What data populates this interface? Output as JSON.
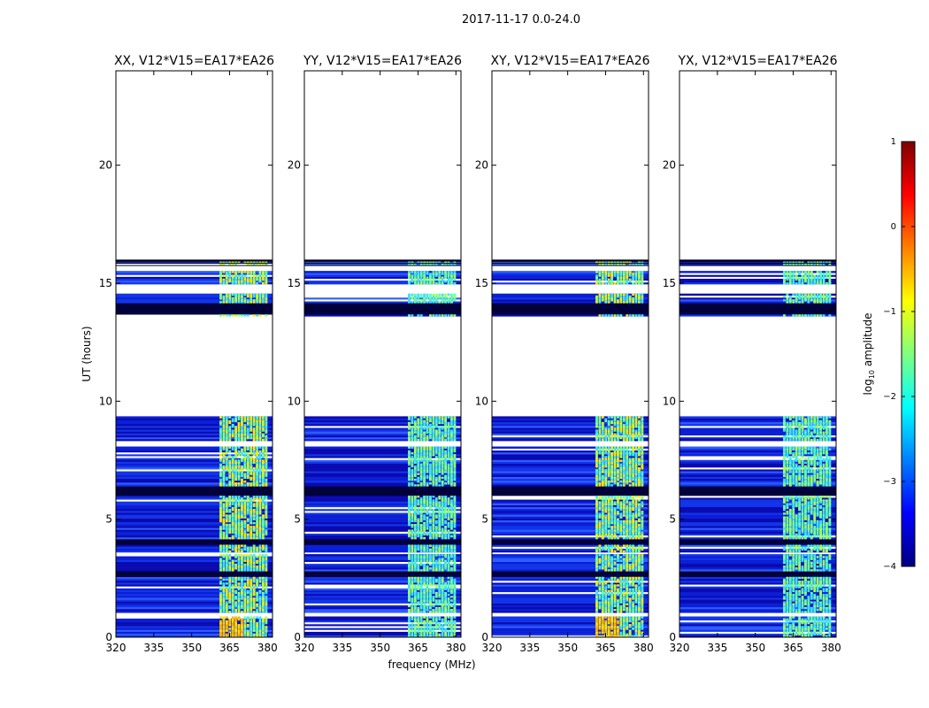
{
  "chart_data": {
    "type": "heatmap",
    "suptitle": "2017-11-17 0.0-24.0",
    "xlabel": "frequency (MHz)",
    "ylabel": "UT (hours)",
    "xlim": [
      320,
      382
    ],
    "ylim": [
      0,
      24
    ],
    "x_ticks": [
      320,
      335,
      350,
      365,
      380
    ],
    "y_ticks": [
      0,
      5,
      10,
      15,
      20
    ],
    "panels": [
      {
        "title": "XX, V12*V15=EA17*EA26",
        "show_ylabel": true,
        "show_xlabel": false
      },
      {
        "title": "YY, V12*V15=EA17*EA26",
        "show_ylabel": false,
        "show_xlabel": true
      },
      {
        "title": "XY, V12*V15=EA17*EA26",
        "show_ylabel": false,
        "show_xlabel": false
      },
      {
        "title": "YX, V12*V15=EA17*EA26",
        "show_ylabel": false,
        "show_xlabel": false
      }
    ],
    "data_extent_hours": [
      0,
      16.0
    ],
    "bright_band_mhz": [
      361,
      380
    ],
    "colorbar": {
      "label": "log10 amplitude",
      "label_main": "log",
      "label_sub": "10",
      "label_rest": " amplitude",
      "vmin": -4,
      "vmax": 1,
      "ticks": [
        "1",
        "0",
        "−1",
        "−2",
        "−3",
        "−4"
      ],
      "colormap": "jet",
      "colors": [
        "#00007f",
        "#0000ff",
        "#007fff",
        "#00ffff",
        "#7fff7f",
        "#ffff00",
        "#ff7f00",
        "#ff0000",
        "#7f0000"
      ]
    }
  }
}
